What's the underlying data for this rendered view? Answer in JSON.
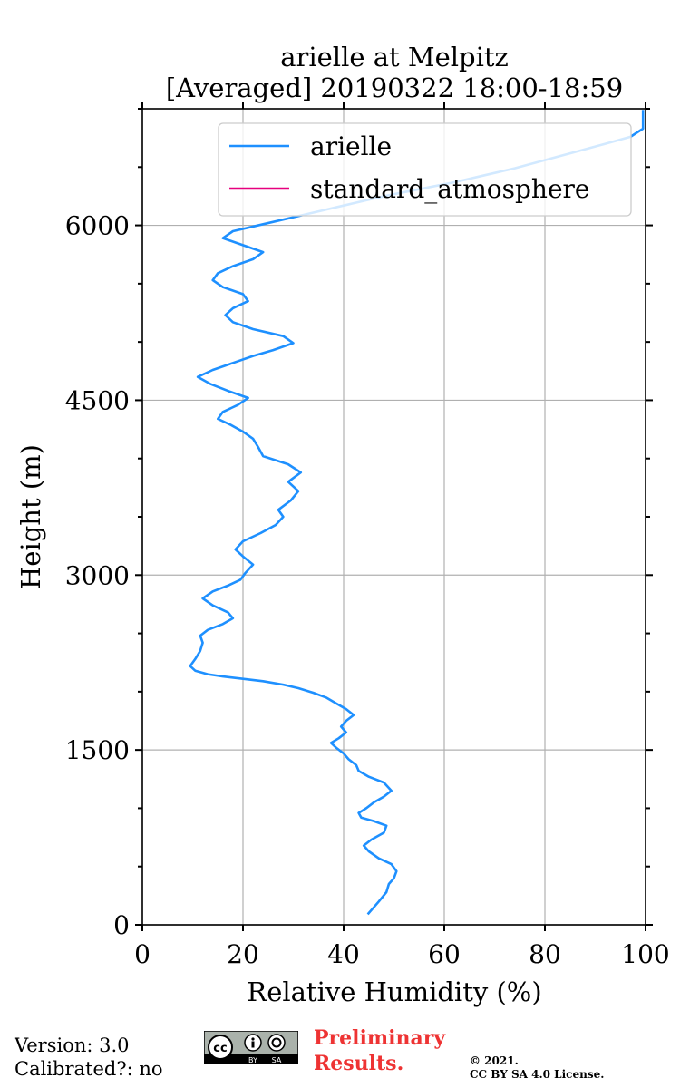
{
  "chart_data": {
    "type": "line",
    "title_line1": "arielle at Melpitz",
    "title_line2": "[Averaged] 20190322 18:00-18:59",
    "xlabel": "Relative Humidity (%)",
    "ylabel": "Height (m)",
    "xlim": [
      0,
      100
    ],
    "ylim": [
      0,
      7000
    ],
    "xticks": [
      0,
      20,
      40,
      60,
      80,
      100
    ],
    "yticks": [
      0,
      1500,
      3000,
      4500,
      6000
    ],
    "grid": true,
    "legend_position": "top-right",
    "series": [
      {
        "name": "arielle",
        "color": "#1e90ff",
        "points": [
          [
            44.8,
            90
          ],
          [
            46,
            150
          ],
          [
            47,
            200
          ],
          [
            48.5,
            280
          ],
          [
            49,
            350
          ],
          [
            50,
            400
          ],
          [
            50.5,
            460
          ],
          [
            49.5,
            520
          ],
          [
            47,
            570
          ],
          [
            45,
            630
          ],
          [
            44,
            680
          ],
          [
            45.5,
            730
          ],
          [
            48,
            790
          ],
          [
            48.5,
            850
          ],
          [
            46,
            890
          ],
          [
            43.5,
            920
          ],
          [
            43,
            960
          ],
          [
            44.5,
            1000
          ],
          [
            46,
            1050
          ],
          [
            48,
            1100
          ],
          [
            49.5,
            1150
          ],
          [
            48,
            1220
          ],
          [
            45,
            1270
          ],
          [
            43,
            1320
          ],
          [
            42.5,
            1370
          ],
          [
            41,
            1420
          ],
          [
            40,
            1470
          ],
          [
            38.5,
            1520
          ],
          [
            37.5,
            1560
          ],
          [
            39,
            1600
          ],
          [
            40.5,
            1650
          ],
          [
            39.5,
            1700
          ],
          [
            40.5,
            1750
          ],
          [
            42,
            1800
          ],
          [
            40.5,
            1850
          ],
          [
            38.5,
            1900
          ],
          [
            36.5,
            1950
          ],
          [
            34,
            1990
          ],
          [
            31,
            2030
          ],
          [
            28,
            2060
          ],
          [
            24,
            2090
          ],
          [
            20,
            2110
          ],
          [
            16,
            2130
          ],
          [
            13,
            2150
          ],
          [
            10.5,
            2180
          ],
          [
            9.5,
            2220
          ],
          [
            10.5,
            2280
          ],
          [
            11.5,
            2350
          ],
          [
            12,
            2420
          ],
          [
            11.5,
            2480
          ],
          [
            13,
            2530
          ],
          [
            16,
            2580
          ],
          [
            18,
            2630
          ],
          [
            17,
            2680
          ],
          [
            14,
            2740
          ],
          [
            12,
            2800
          ],
          [
            14,
            2860
          ],
          [
            17,
            2910
          ],
          [
            19.5,
            2960
          ],
          [
            20.5,
            3020
          ],
          [
            22,
            3090
          ],
          [
            20,
            3160
          ],
          [
            18.5,
            3220
          ],
          [
            20,
            3290
          ],
          [
            23.5,
            3360
          ],
          [
            26.5,
            3430
          ],
          [
            28,
            3500
          ],
          [
            27,
            3560
          ],
          [
            29.5,
            3640
          ],
          [
            31,
            3720
          ],
          [
            29,
            3800
          ],
          [
            31.5,
            3880
          ],
          [
            29,
            3950
          ],
          [
            24,
            4020
          ],
          [
            23,
            4100
          ],
          [
            22,
            4170
          ],
          [
            20,
            4230
          ],
          [
            17.5,
            4290
          ],
          [
            15,
            4340
          ],
          [
            16,
            4400
          ],
          [
            19,
            4460
          ],
          [
            21,
            4520
          ],
          [
            17,
            4580
          ],
          [
            13.5,
            4640
          ],
          [
            11,
            4700
          ],
          [
            14,
            4760
          ],
          [
            18,
            4820
          ],
          [
            22,
            4880
          ],
          [
            26,
            4930
          ],
          [
            30,
            4990
          ],
          [
            28,
            5050
          ],
          [
            22,
            5110
          ],
          [
            18,
            5170
          ],
          [
            16.5,
            5230
          ],
          [
            18,
            5290
          ],
          [
            21,
            5350
          ],
          [
            20,
            5410
          ],
          [
            16,
            5470
          ],
          [
            14,
            5530
          ],
          [
            15,
            5590
          ],
          [
            18,
            5650
          ],
          [
            22,
            5710
          ],
          [
            24,
            5770
          ],
          [
            20,
            5830
          ],
          [
            16,
            5890
          ],
          [
            18,
            5950
          ],
          [
            24,
            6010
          ],
          [
            30,
            6070
          ],
          [
            36,
            6130
          ],
          [
            42,
            6190
          ],
          [
            48,
            6250
          ],
          [
            55,
            6310
          ],
          [
            62,
            6370
          ],
          [
            68,
            6430
          ],
          [
            74,
            6490
          ],
          [
            80,
            6560
          ],
          [
            86,
            6630
          ],
          [
            92,
            6700
          ],
          [
            97,
            6760
          ],
          [
            99.5,
            6830
          ],
          [
            99.5,
            6990
          ]
        ]
      },
      {
        "name": "standard_atmosphere",
        "color": "#e6007e",
        "points": []
      }
    ]
  },
  "footer": {
    "version": "Version: 3.0",
    "calibrated": "Calibrated?: no",
    "preliminary_line1": "Preliminary",
    "preliminary_line2": "Results.",
    "copyright_line1": "©  2021.",
    "copyright_line2": "CC BY SA 4.0 License.",
    "cc_badge_left": "cc",
    "cc_badge_by": "BY",
    "cc_badge_sa": "SA"
  }
}
